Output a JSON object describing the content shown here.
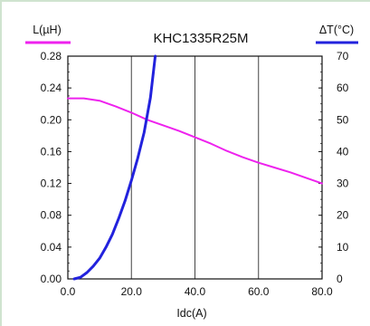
{
  "chart_data": {
    "type": "line",
    "title": "KHC1335R25M",
    "xlabel": "Idc(A)",
    "ylabel_left": "L(µH)",
    "ylabel_right": "ΔT(°C)",
    "xlim": [
      0,
      80
    ],
    "ylim_left": [
      0,
      0.28
    ],
    "ylim_right": [
      0,
      70
    ],
    "x_ticks": [
      "0.0",
      "20.0",
      "40.0",
      "60.0",
      "80.0"
    ],
    "y_left_ticks": [
      "0.00",
      "0.04",
      "0.08",
      "0.12",
      "0.16",
      "0.20",
      "0.24",
      "0.28"
    ],
    "y_right_ticks": [
      "0",
      "10",
      "20",
      "30",
      "40",
      "50",
      "60",
      "70"
    ],
    "grid": true,
    "series": [
      {
        "name": "L(µH)",
        "axis": "left",
        "color": "#ee22ee",
        "x": [
          0,
          5,
          10,
          15,
          20,
          25,
          30,
          35,
          40,
          45,
          50,
          55,
          60,
          65,
          70,
          75,
          80
        ],
        "y": [
          0.227,
          0.227,
          0.224,
          0.217,
          0.209,
          0.2,
          0.193,
          0.186,
          0.178,
          0.17,
          0.161,
          0.153,
          0.146,
          0.14,
          0.134,
          0.127,
          0.12
        ]
      },
      {
        "name": "ΔT(°C)",
        "axis": "right",
        "color": "#2222dd",
        "x": [
          2,
          4,
          6,
          8,
          10,
          12,
          14,
          16,
          18,
          20,
          22,
          24,
          26,
          27.5
        ],
        "y": [
          0,
          0.5,
          2,
          4,
          6.5,
          10,
          14,
          19,
          24.5,
          31,
          38,
          46,
          57,
          70
        ]
      }
    ]
  }
}
